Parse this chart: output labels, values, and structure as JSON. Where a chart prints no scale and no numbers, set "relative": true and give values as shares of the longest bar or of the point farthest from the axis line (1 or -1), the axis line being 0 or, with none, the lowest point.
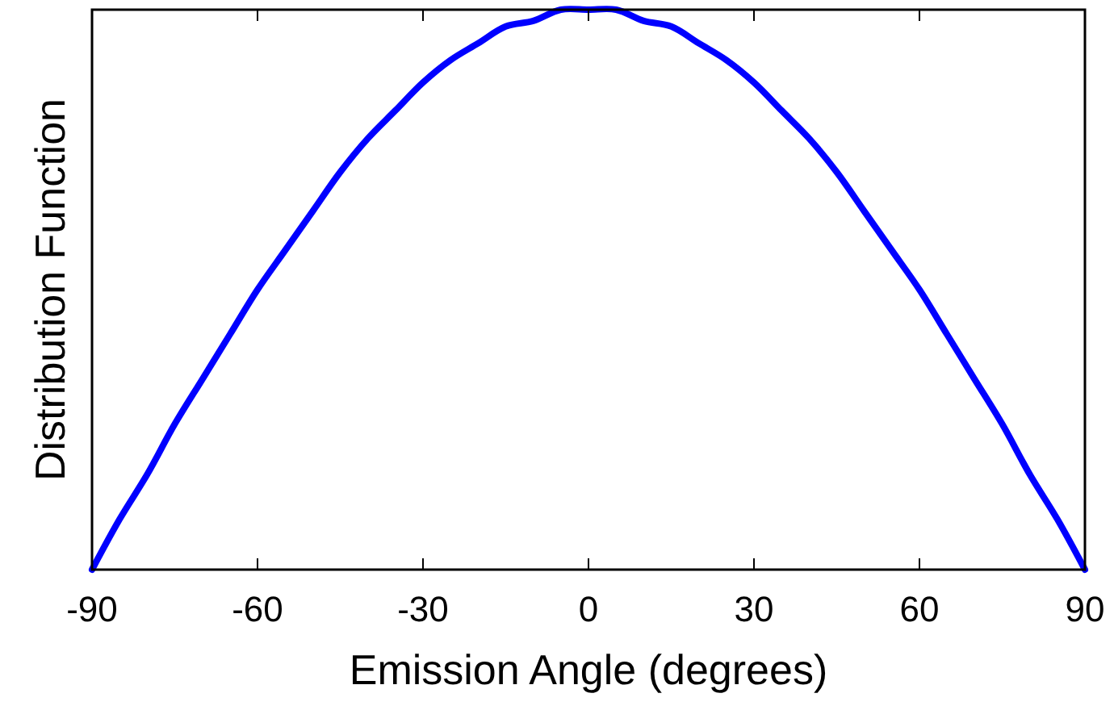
{
  "chart_data": {
    "type": "line",
    "xlabel": "Emission Angle (degrees)",
    "ylabel": "Distribution Function",
    "x": [
      -90,
      -85,
      -80,
      -75,
      -70,
      -65,
      -60,
      -55,
      -50,
      -45,
      -40,
      -35,
      -30,
      -25,
      -20,
      -15,
      -10,
      -5,
      0,
      5,
      10,
      15,
      20,
      25,
      30,
      35,
      40,
      45,
      50,
      55,
      60,
      65,
      70,
      75,
      80,
      85,
      90
    ],
    "series": [
      {
        "color": "#0000ff",
        "values": [
          0,
          0.09,
          0.17,
          0.26,
          0.34,
          0.42,
          0.5,
          0.57,
          0.64,
          0.71,
          0.77,
          0.82,
          0.87,
          0.91,
          0.94,
          0.97,
          0.98,
          1,
          1,
          1,
          0.98,
          0.97,
          0.94,
          0.91,
          0.87,
          0.82,
          0.77,
          0.71,
          0.64,
          0.57,
          0.5,
          0.42,
          0.34,
          0.26,
          0.17,
          0.09,
          0
        ]
      }
    ],
    "relative": true,
    "xlim": [
      -90,
      90
    ],
    "xticks": [
      -90,
      -60,
      -30,
      0,
      30,
      60,
      90
    ],
    "grid": false,
    "marker": "none",
    "line_style": "solid"
  }
}
